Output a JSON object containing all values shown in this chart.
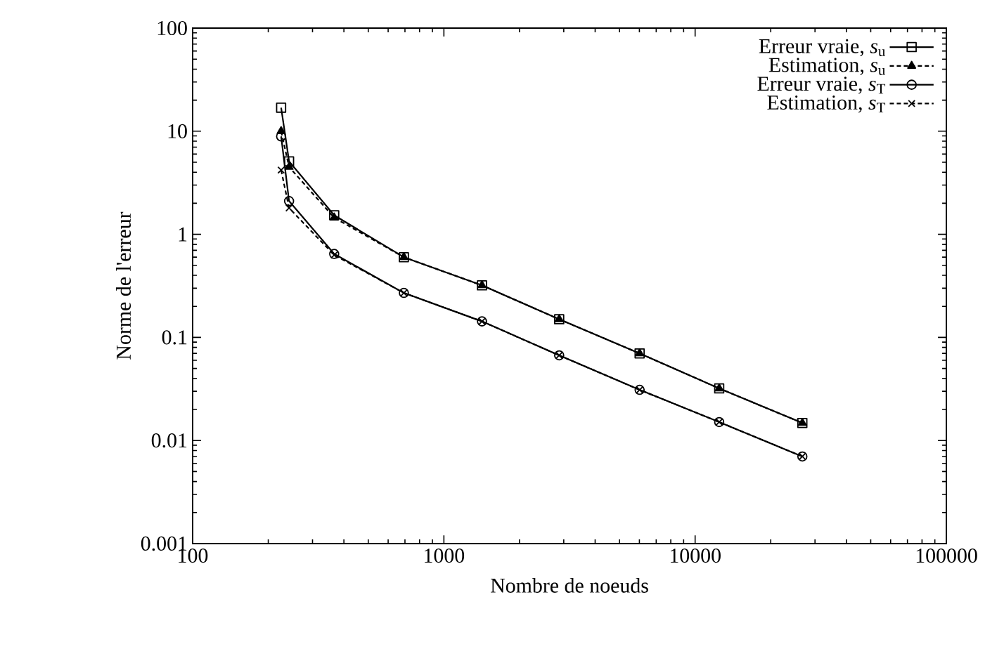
{
  "chart_data": {
    "type": "line",
    "xlabel": "Nombre de noeuds",
    "ylabel": "Norme de l'erreur",
    "log": "xy",
    "xlim": [
      100,
      100000
    ],
    "ylim": [
      0.001,
      100
    ],
    "xticks": [
      100,
      1000,
      10000,
      100000
    ],
    "yticks": [
      0.001,
      0.01,
      0.1,
      1,
      10,
      100
    ],
    "legend": "top right",
    "grid": false,
    "x": [
      225,
      242,
      366,
      693,
      1418,
      2877,
      6013,
      12470,
      26720
    ],
    "series": [
      {
        "name": "Erreur vraie, *s*$_{u}$",
        "color": "#000000",
        "marker": "square",
        "line_style": "solid",
        "values": [
          16.9,
          5.1,
          1.53,
          0.6,
          0.32,
          0.15,
          0.07,
          0.032,
          0.0148
        ]
      },
      {
        "name": "Estimation, *s*$_{u}$",
        "color": "#000000",
        "marker": "triangle",
        "line_style": "dashed",
        "values": [
          10,
          4.5,
          1.45,
          0.6,
          0.32,
          0.15,
          0.07,
          0.032,
          0.0148
        ]
      },
      {
        "name": "Erreur vraie, *s*$_{T}$",
        "color": "#000000",
        "marker": "circle",
        "line_style": "solid",
        "values": [
          8.9,
          2.1,
          0.645,
          0.27,
          0.143,
          0.067,
          0.031,
          0.0151,
          0.007
        ]
      },
      {
        "name": "Estimation, *s*$_{T}$",
        "color": "#000000",
        "marker": "cross",
        "line_style": "dashed",
        "values": [
          4.2,
          1.8,
          0.63,
          0.27,
          0.143,
          0.067,
          0.031,
          0.0151,
          0.007
        ]
      }
    ]
  }
}
